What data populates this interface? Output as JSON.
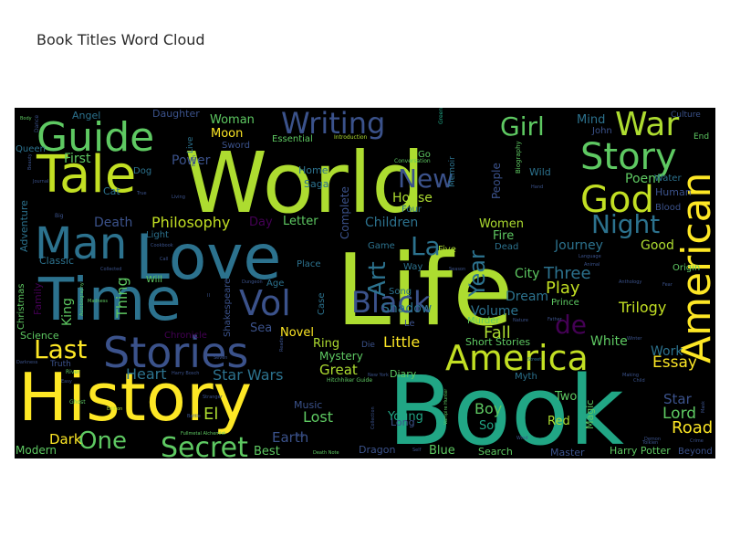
{
  "title": "Book Titles Word Cloud",
  "chart_data": {
    "type": "wordcloud",
    "title": "Book Titles Word Cloud",
    "background": "#000000",
    "colormap": "viridis",
    "words": [
      {
        "text": "Book",
        "weight": 1.0
      },
      {
        "text": "Life",
        "weight": 0.98
      },
      {
        "text": "World",
        "weight": 0.95
      },
      {
        "text": "History",
        "weight": 0.9
      },
      {
        "text": "Love",
        "weight": 0.82
      },
      {
        "text": "Time",
        "weight": 0.8
      },
      {
        "text": "Tale",
        "weight": 0.7
      },
      {
        "text": "Stories",
        "weight": 0.66
      },
      {
        "text": "Man",
        "weight": 0.62
      },
      {
        "text": "American",
        "weight": 0.6
      },
      {
        "text": "Guide",
        "weight": 0.56
      },
      {
        "text": "America",
        "weight": 0.55
      },
      {
        "text": "God",
        "weight": 0.53
      },
      {
        "text": "Story",
        "weight": 0.52
      },
      {
        "text": "War",
        "weight": 0.5
      },
      {
        "text": "Vol",
        "weight": 0.5
      },
      {
        "text": "Black",
        "weight": 0.48
      },
      {
        "text": "Secret",
        "weight": 0.46
      },
      {
        "text": "Writing",
        "weight": 0.45
      },
      {
        "text": "Last",
        "weight": 0.44
      },
      {
        "text": "New",
        "weight": 0.44
      },
      {
        "text": "Night",
        "weight": 0.43
      },
      {
        "text": "Girl",
        "weight": 0.42
      },
      {
        "text": "One",
        "weight": 0.42
      },
      {
        "text": "La",
        "weight": 0.42
      },
      {
        "text": "de",
        "weight": 0.4
      },
      {
        "text": "Art",
        "weight": 0.4
      },
      {
        "text": "Year",
        "weight": 0.38
      },
      {
        "text": "Road",
        "weight": 0.32
      },
      {
        "text": "Philosophy",
        "weight": 0.32
      },
      {
        "text": "Star Wars",
        "weight": 0.3
      },
      {
        "text": "Heart",
        "weight": 0.3
      },
      {
        "text": "Thing",
        "weight": 0.3
      },
      {
        "text": "Essay",
        "weight": 0.3
      },
      {
        "text": "Lord",
        "weight": 0.3
      },
      {
        "text": "Trilogy",
        "weight": 0.3
      },
      {
        "text": "Play",
        "weight": 0.3
      },
      {
        "text": "Three",
        "weight": 0.3
      },
      {
        "text": "Fall",
        "weight": 0.3
      },
      {
        "text": "Little",
        "weight": 0.28
      },
      {
        "text": "Lost",
        "weight": 0.28
      },
      {
        "text": "Boy",
        "weight": 0.28
      },
      {
        "text": "Dark",
        "weight": 0.28
      },
      {
        "text": "Earth",
        "weight": 0.28
      },
      {
        "text": "Great",
        "weight": 0.28
      },
      {
        "text": "Shadow",
        "weight": 0.26
      },
      {
        "text": "Journey",
        "weight": 0.26
      },
      {
        "text": "Children",
        "weight": 0.26
      },
      {
        "text": "Poem",
        "weight": 0.26
      },
      {
        "text": "Work",
        "weight": 0.26
      },
      {
        "text": "Star",
        "weight": 0.26
      },
      {
        "text": "First",
        "weight": 0.26
      },
      {
        "text": "Power",
        "weight": 0.26
      },
      {
        "text": "Death",
        "weight": 0.26
      },
      {
        "text": "King",
        "weight": 0.26
      },
      {
        "text": "Women",
        "weight": 0.24
      },
      {
        "text": "Dream",
        "weight": 0.24
      },
      {
        "text": "City",
        "weight": 0.24
      },
      {
        "text": "House",
        "weight": 0.24
      },
      {
        "text": "Volume",
        "weight": 0.24
      },
      {
        "text": "White",
        "weight": 0.24
      },
      {
        "text": "Good",
        "weight": 0.24
      },
      {
        "text": "Woman",
        "weight": 0.22
      },
      {
        "text": "Moon",
        "weight": 0.22
      },
      {
        "text": "Ring",
        "weight": 0.22
      },
      {
        "text": "Novel",
        "weight": 0.22
      },
      {
        "text": "Blue",
        "weight": 0.22
      },
      {
        "text": "Young",
        "weight": 0.22
      },
      {
        "text": "Red",
        "weight": 0.22
      },
      {
        "text": "Son",
        "weight": 0.22
      },
      {
        "text": "Two",
        "weight": 0.22
      },
      {
        "text": "Letter",
        "weight": 0.22
      },
      {
        "text": "Fire",
        "weight": 0.22
      },
      {
        "text": "Best",
        "weight": 0.22
      },
      {
        "text": "Modern",
        "weight": 0.22
      },
      {
        "text": "El",
        "weight": 0.3
      },
      {
        "text": "Harry Potter",
        "weight": 0.2
      },
      {
        "text": "Mystery",
        "weight": 0.2
      },
      {
        "text": "Adventure",
        "weight": 0.2
      },
      {
        "text": "Science",
        "weight": 0.2
      },
      {
        "text": "Family",
        "weight": 0.2
      },
      {
        "text": "Complete",
        "weight": 0.2
      },
      {
        "text": "People",
        "weight": 0.2
      },
      {
        "text": "Human",
        "weight": 0.2
      },
      {
        "text": "Magic",
        "weight": 0.2
      },
      {
        "text": "Diary",
        "weight": 0.18
      },
      {
        "text": "Short Stories",
        "weight": 0.18
      },
      {
        "text": "Search",
        "weight": 0.18
      },
      {
        "text": "Dragon",
        "weight": 0.18
      },
      {
        "text": "Master",
        "weight": 0.18
      },
      {
        "text": "Beyond",
        "weight": 0.18
      },
      {
        "text": "Long",
        "weight": 0.18
      },
      {
        "text": "Classic",
        "weight": 0.18
      },
      {
        "text": "Music",
        "weight": 0.18
      },
      {
        "text": "Day",
        "weight": 0.18
      },
      {
        "text": "Sea",
        "weight": 0.18
      },
      {
        "text": "Mind",
        "weight": 0.18
      },
      {
        "text": "Wild",
        "weight": 0.18
      },
      {
        "text": "Angel",
        "weight": 0.16
      },
      {
        "text": "Daughter",
        "weight": 0.16
      },
      {
        "text": "Sword",
        "weight": 0.16
      },
      {
        "text": "Essential",
        "weight": 0.16
      },
      {
        "text": "Home",
        "weight": 0.16
      },
      {
        "text": "Saga",
        "weight": 0.16
      },
      {
        "text": "Dog",
        "weight": 0.16
      },
      {
        "text": "Cat",
        "weight": 0.16
      },
      {
        "text": "Will",
        "weight": 0.16
      },
      {
        "text": "Light",
        "weight": 0.16
      },
      {
        "text": "Game",
        "weight": 0.16
      },
      {
        "text": "Dead",
        "weight": 0.16
      },
      {
        "text": "Origin",
        "weight": 0.16
      },
      {
        "text": "Murder",
        "weight": 0.16
      },
      {
        "text": "Chronicle",
        "weight": 0.16
      },
      {
        "text": "Place",
        "weight": 0.14
      },
      {
        "text": "Blood",
        "weight": 0.14
      },
      {
        "text": "Water",
        "weight": 0.14
      },
      {
        "text": "Culture",
        "weight": 0.14
      },
      {
        "text": "John",
        "weight": 0.14
      },
      {
        "text": "Queen",
        "weight": 0.14
      },
      {
        "text": "Christmas",
        "weight": 0.14
      },
      {
        "text": "Age",
        "weight": 0.14
      },
      {
        "text": "Case",
        "weight": 0.14
      },
      {
        "text": "Shakespeare",
        "weight": 0.14
      },
      {
        "text": "Song",
        "weight": 0.14
      },
      {
        "text": "Way",
        "weight": 0.14
      },
      {
        "text": "Four",
        "weight": 0.14
      },
      {
        "text": "Five",
        "weight": 0.12
      },
      {
        "text": "Le",
        "weight": 0.14
      },
      {
        "text": "Go",
        "weight": 0.14
      },
      {
        "text": "Prince",
        "weight": 0.13
      },
      {
        "text": "Myth",
        "weight": 0.12
      },
      {
        "text": "End",
        "weight": 0.12
      },
      {
        "text": "Live",
        "weight": 0.12
      },
      {
        "text": "Memoir",
        "weight": 0.12
      },
      {
        "text": "Truth",
        "weight": 0.12
      },
      {
        "text": "Die",
        "weight": 0.12
      },
      {
        "text": "Biography",
        "weight": 0.1
      },
      {
        "text": "Introduction",
        "weight": 0.08
      },
      {
        "text": "Conversation",
        "weight": 0.08
      },
      {
        "text": "Hitchhiker Guide",
        "weight": 0.08
      },
      {
        "text": "Green",
        "weight": 0.08
      },
      {
        "text": "Dance",
        "weight": 0.08
      },
      {
        "text": "Body",
        "weight": 0.08
      },
      {
        "text": "Autobiography",
        "weight": 0.08
      },
      {
        "text": "Madness",
        "weight": 0.08
      },
      {
        "text": "Darkness",
        "weight": 0.08
      },
      {
        "text": "River",
        "weight": 0.08
      },
      {
        "text": "Ghost",
        "weight": 0.08
      },
      {
        "text": "Edition",
        "weight": 0.08
      },
      {
        "text": "Stranger",
        "weight": 0.08
      },
      {
        "text": "Fullmetal Alchemist",
        "weight": 0.07
      },
      {
        "text": "Death Note",
        "weight": 0.07
      },
      {
        "text": "Vampire Hunter",
        "weight": 0.07
      },
      {
        "text": "Collection",
        "weight": 0.07
      },
      {
        "text": "Wind",
        "weight": 0.07
      },
      {
        "text": "Street",
        "weight": 0.07
      },
      {
        "text": "Making",
        "weight": 0.07
      },
      {
        "text": "Child",
        "weight": 0.07
      },
      {
        "text": "Demon",
        "weight": 0.07
      },
      {
        "text": "Crime",
        "weight": 0.07
      },
      {
        "text": "Mask",
        "weight": 0.07
      },
      {
        "text": "Anthology",
        "weight": 0.07
      },
      {
        "text": "Winter",
        "weight": 0.07
      },
      {
        "text": "Language",
        "weight": 0.07
      },
      {
        "text": "Animal",
        "weight": 0.07
      },
      {
        "text": "Tolkien",
        "weight": 0.07
      },
      {
        "text": "Father",
        "weight": 0.07
      },
      {
        "text": "Fear",
        "weight": 0.07
      },
      {
        "text": "Hand",
        "weight": 0.07
      },
      {
        "text": "Beauty",
        "weight": 0.07
      },
      {
        "text": "Journal",
        "weight": 0.07
      },
      {
        "text": "Easy",
        "weight": 0.07
      },
      {
        "text": "Big",
        "weight": 0.07
      },
      {
        "text": "True",
        "weight": 0.07
      },
      {
        "text": "Living",
        "weight": 0.07
      },
      {
        "text": "Cookbook",
        "weight": 0.07
      },
      {
        "text": "Call",
        "weight": 0.07
      },
      {
        "text": "Collected",
        "weight": 0.07
      },
      {
        "text": "Faith",
        "weight": 0.07
      },
      {
        "text": "Seven",
        "weight": 0.07
      },
      {
        "text": "Battle",
        "weight": 0.07
      },
      {
        "text": "Sun",
        "weight": 0.07
      },
      {
        "text": "Season",
        "weight": 0.07
      },
      {
        "text": "Nature",
        "weight": 0.07
      },
      {
        "text": "New York",
        "weight": 0.07
      },
      {
        "text": "Self",
        "weight": 0.07
      },
      {
        "text": "Reader",
        "weight": 0.07
      },
      {
        "text": "Dungeon",
        "weight": 0.07
      },
      {
        "text": "Harry Bosch",
        "weight": 0.07
      },
      {
        "text": "II",
        "weight": 0.07
      }
    ]
  }
}
